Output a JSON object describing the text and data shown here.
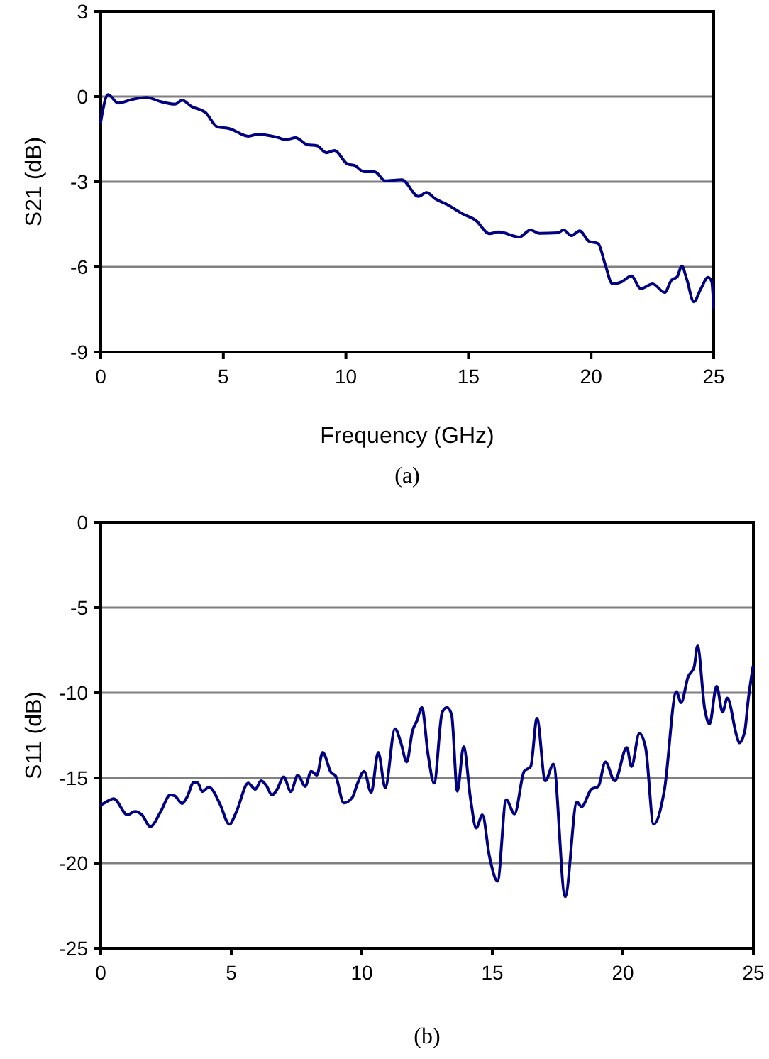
{
  "chart_data": [
    {
      "type": "line",
      "xlabel": "Frequency (GHz)",
      "ylabel": "S21 (dB)",
      "annotations": [
        "(a)"
      ],
      "xlim": [
        0,
        25
      ],
      "xticks": [
        0,
        5,
        10,
        15,
        20,
        25
      ],
      "ylim": [
        -9,
        3
      ],
      "yticks": [
        -9,
        -6,
        -3,
        0,
        3
      ],
      "grid": "y",
      "series": [
        {
          "color": "#000080",
          "x": [
            0,
            0.06,
            0.3,
            0.71,
            1.29,
            1.87,
            2.45,
            3.03,
            3.32,
            3.7,
            4.28,
            4.76,
            5.25,
            6.02,
            6.4,
            7.18,
            7.56,
            7.95,
            8.43,
            8.82,
            9.2,
            9.53,
            10.07,
            10.36,
            10.74,
            11.17,
            11.61,
            12.28,
            12.96,
            13.29,
            13.64,
            14.12,
            14.8,
            15.28,
            15.86,
            16.24,
            17.07,
            17.53,
            17.88,
            18.65,
            18.88,
            19.19,
            19.54,
            19.91,
            20.29,
            20.58,
            20.87,
            21.26,
            21.64,
            22.03,
            22.51,
            23.0,
            23.28,
            23.51,
            23.7,
            23.9,
            24.19,
            24.48,
            24.77,
            24.92,
            25
          ],
          "values": [
            -0.9,
            -0.6,
            0.07,
            -0.23,
            -0.1,
            -0.03,
            -0.18,
            -0.27,
            -0.13,
            -0.35,
            -0.57,
            -1.07,
            -1.13,
            -1.4,
            -1.33,
            -1.43,
            -1.52,
            -1.45,
            -1.7,
            -1.73,
            -1.98,
            -1.9,
            -2.38,
            -2.43,
            -2.65,
            -2.65,
            -2.97,
            -2.93,
            -3.52,
            -3.38,
            -3.6,
            -3.8,
            -4.15,
            -4.35,
            -4.83,
            -4.77,
            -4.95,
            -4.7,
            -4.82,
            -4.8,
            -4.7,
            -4.9,
            -4.73,
            -5.1,
            -5.18,
            -5.93,
            -6.6,
            -6.52,
            -6.32,
            -6.77,
            -6.6,
            -6.9,
            -6.47,
            -6.35,
            -5.97,
            -6.43,
            -7.23,
            -6.77,
            -6.37,
            -6.52,
            -7.43
          ]
        }
      ]
    },
    {
      "type": "line",
      "ylabel": "S11 (dB)",
      "annotations": [
        "(b)"
      ],
      "xlim": [
        0,
        25
      ],
      "xticks": [
        0,
        5,
        10,
        15,
        20,
        25
      ],
      "ylim": [
        -25,
        0
      ],
      "yticks": [
        -25,
        -20,
        -15,
        -10,
        -5,
        0
      ],
      "grid": "y",
      "series": [
        {
          "color": "#000080",
          "x": [
            0,
            0.31,
            0.49,
            1.03,
            1.3,
            1.58,
            1.9,
            2.3,
            2.66,
            2.84,
            3.12,
            3.3,
            3.57,
            3.72,
            3.89,
            4.15,
            4.29,
            4.57,
            4.93,
            5.2,
            5.65,
            5.92,
            6.14,
            6.34,
            6.56,
            6.74,
            7.01,
            7.28,
            7.55,
            7.83,
            8.06,
            8.28,
            8.5,
            8.82,
            9.0,
            9.31,
            9.64,
            9.82,
            10.09,
            10.36,
            10.63,
            10.9,
            11.27,
            11.5,
            11.72,
            11.94,
            12.12,
            12.3,
            12.54,
            12.77,
            13.08,
            13.26,
            13.44,
            13.66,
            13.9,
            14.17,
            14.38,
            14.62,
            14.89,
            15.2,
            15.53,
            15.85,
            16.22,
            16.47,
            16.71,
            17.03,
            17.34,
            17.79,
            18.24,
            18.42,
            18.79,
            19.06,
            19.33,
            19.69,
            20.15,
            20.33,
            20.63,
            20.87,
            21.18,
            21.59,
            22.05,
            22.23,
            22.5,
            22.73,
            22.86,
            23.14,
            23.32,
            23.59,
            23.82,
            24.0,
            24.36,
            24.46,
            24.67,
            24.8,
            24.98
          ],
          "values": [
            -16.6,
            -16.33,
            -16.22,
            -17.17,
            -16.97,
            -17.17,
            -17.86,
            -16.97,
            -16,
            -16.06,
            -16.5,
            -16.14,
            -15.25,
            -15.3,
            -15.8,
            -15.53,
            -15.72,
            -16.55,
            -17.72,
            -16.97,
            -15.3,
            -15.67,
            -15.17,
            -15.44,
            -16,
            -15.72,
            -14.94,
            -15.8,
            -14.83,
            -15.5,
            -14.61,
            -14.83,
            -13.5,
            -14.67,
            -14.89,
            -16.47,
            -16.14,
            -15.39,
            -14.61,
            -15.86,
            -13.5,
            -15.58,
            -12.11,
            -12.94,
            -14.06,
            -12.25,
            -11.61,
            -10.86,
            -13.64,
            -15.3,
            -11.14,
            -10.86,
            -11.28,
            -15.78,
            -13.17,
            -16.28,
            -17.94,
            -17.17,
            -19.61,
            -21.06,
            -16.28,
            -17.11,
            -14.61,
            -14.33,
            -11.5,
            -15.17,
            -14.19,
            -21.97,
            -16.42,
            -16.69,
            -15.67,
            -15.5,
            -14.06,
            -15.17,
            -13.22,
            -14.33,
            -12.39,
            -13.22,
            -17.72,
            -15.72,
            -9.94,
            -10.58,
            -9.06,
            -8.5,
            -7.25,
            -11.0,
            -11.83,
            -9.61,
            -11.14,
            -10.31,
            -12.53,
            -12.94,
            -12.25,
            -10.44,
            -8.5
          ]
        }
      ]
    }
  ]
}
